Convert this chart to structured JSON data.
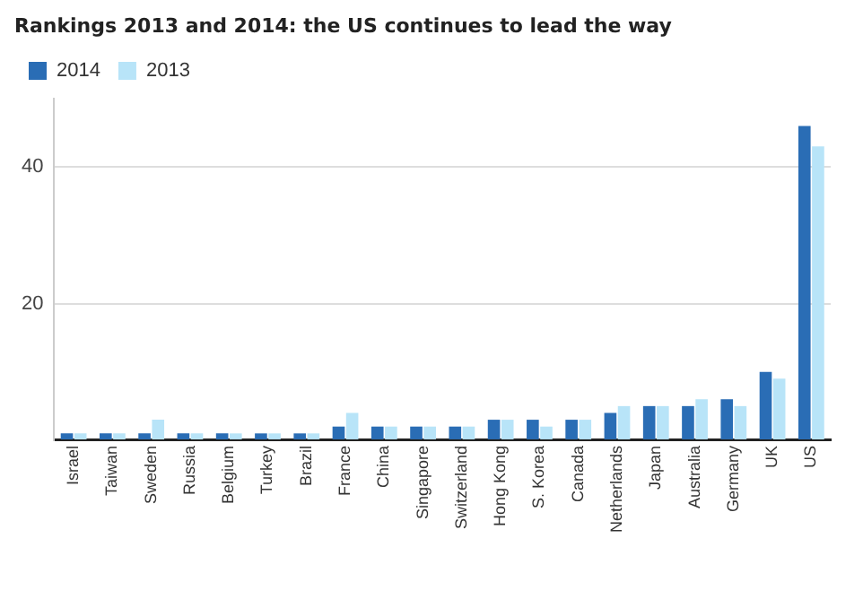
{
  "chart_data": {
    "type": "bar",
    "title": "Rankings 2013 and 2014: the US continues to lead the way",
    "categories": [
      "Israel",
      "Taiwan",
      "Sweden",
      "Russia",
      "Belgium",
      "Turkey",
      "Brazil",
      "France",
      "China",
      "Singapore",
      "Switzerland",
      "Hong Kong",
      "S. Korea",
      "Canada",
      "Netherlands",
      "Japan",
      "Australia",
      "Germany",
      "UK",
      "US"
    ],
    "series": [
      {
        "name": "2014",
        "color": "#2a6db5",
        "values": [
          1,
          1,
          1,
          1,
          1,
          1,
          1,
          2,
          2,
          2,
          2,
          3,
          3,
          3,
          4,
          5,
          5,
          6,
          10,
          46
        ]
      },
      {
        "name": "2013",
        "color": "#b8e4f8",
        "values": [
          1,
          1,
          3,
          1,
          1,
          1,
          1,
          4,
          2,
          2,
          2,
          3,
          2,
          3,
          5,
          5,
          6,
          5,
          9,
          43
        ]
      }
    ],
    "ylim": [
      0,
      50
    ],
    "yticks": [
      {
        "value": 0,
        "label": null
      },
      20,
      40
    ],
    "grid": "y",
    "legend": "top left"
  }
}
